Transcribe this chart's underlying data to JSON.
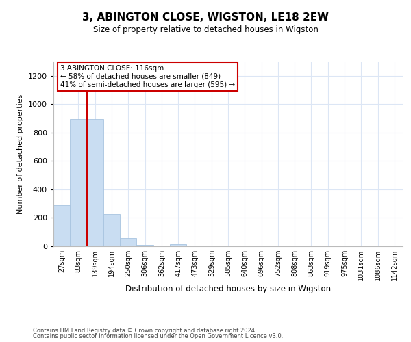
{
  "title": "3, ABINGTON CLOSE, WIGSTON, LE18 2EW",
  "subtitle": "Size of property relative to detached houses in Wigston",
  "xlabel": "Distribution of detached houses by size in Wigston",
  "ylabel": "Number of detached properties",
  "bar_labels": [
    "27sqm",
    "83sqm",
    "139sqm",
    "194sqm",
    "250sqm",
    "306sqm",
    "362sqm",
    "417sqm",
    "473sqm",
    "529sqm",
    "585sqm",
    "640sqm",
    "696sqm",
    "752sqm",
    "808sqm",
    "863sqm",
    "919sqm",
    "975sqm",
    "1031sqm",
    "1086sqm",
    "1142sqm"
  ],
  "bar_values": [
    290,
    895,
    895,
    225,
    60,
    10,
    0,
    15,
    0,
    0,
    0,
    0,
    0,
    0,
    0,
    0,
    0,
    0,
    0,
    0,
    0
  ],
  "bar_color": "#c9ddf2",
  "bar_edge_color": "#a8c4e0",
  "ylim": [
    0,
    1300
  ],
  "yticks": [
    0,
    200,
    400,
    600,
    800,
    1000,
    1200
  ],
  "vline_color": "#cc0000",
  "annotation_text": "3 ABINGTON CLOSE: 116sqm\n← 58% of detached houses are smaller (849)\n41% of semi-detached houses are larger (595) →",
  "annotation_box_color": "#ffffff",
  "annotation_box_edge_color": "#cc0000",
  "footer_line1": "Contains HM Land Registry data © Crown copyright and database right 2024.",
  "footer_line2": "Contains public sector information licensed under the Open Government Licence v3.0.",
  "background_color": "#ffffff",
  "grid_color": "#dce6f5"
}
